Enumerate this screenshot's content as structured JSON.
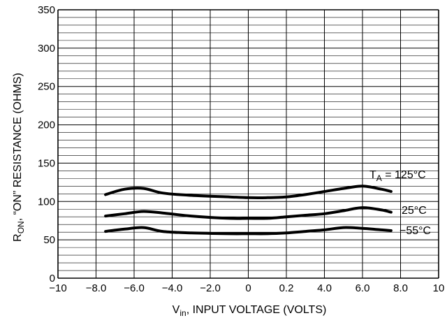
{
  "chart_data": {
    "type": "line",
    "ylabel": {
      "main": "R",
      "sub": "ON",
      "rest": ", “ON” RESISTANCE (OHMS)"
    },
    "xlabel": {
      "main": "V",
      "sub": "in",
      "rest": ", INPUT VOLTAGE (VOLTS)"
    },
    "xlim": [
      -10,
      10
    ],
    "ylim": [
      0,
      350
    ],
    "grid": true,
    "x_tick_labels": [
      "−10",
      "−8.0",
      "−6.0",
      "−4.0",
      "−2.0",
      "0",
      "0.2",
      "4.0",
      "6.0",
      "8.0",
      "10"
    ],
    "y_tick_labels": [
      "0",
      "50",
      "100",
      "150",
      "200",
      "250",
      "300",
      "350"
    ],
    "series": [
      {
        "label_prefix": "T",
        "label_sub": "A",
        "label_rest": " = 125°C",
        "points": [
          [
            -7.5,
            109
          ],
          [
            -6.5,
            116
          ],
          [
            -5.5,
            117
          ],
          [
            -4.5,
            111
          ],
          [
            -3,
            108
          ],
          [
            -1,
            106
          ],
          [
            0,
            105
          ],
          [
            1,
            105
          ],
          [
            2,
            106
          ],
          [
            3,
            109
          ],
          [
            4,
            113
          ],
          [
            5,
            117
          ],
          [
            6,
            120
          ],
          [
            7,
            116
          ],
          [
            7.5,
            113
          ]
        ]
      },
      {
        "label": "25°C",
        "points": [
          [
            -7.5,
            81
          ],
          [
            -6.5,
            84
          ],
          [
            -5.5,
            87
          ],
          [
            -4.5,
            85
          ],
          [
            -3,
            81
          ],
          [
            -1,
            78
          ],
          [
            0,
            78
          ],
          [
            1,
            78
          ],
          [
            2,
            80
          ],
          [
            3,
            82
          ],
          [
            4,
            84
          ],
          [
            5,
            88
          ],
          [
            6,
            92
          ],
          [
            7,
            89
          ],
          [
            7.5,
            86
          ]
        ]
      },
      {
        "label": "−55°C",
        "points": [
          [
            -7.5,
            61
          ],
          [
            -6.5,
            64
          ],
          [
            -5.5,
            66
          ],
          [
            -4.5,
            61
          ],
          [
            -3,
            59
          ],
          [
            -1,
            58
          ],
          [
            0,
            58
          ],
          [
            1,
            58
          ],
          [
            2,
            59
          ],
          [
            3,
            61
          ],
          [
            4,
            63
          ],
          [
            5,
            66
          ],
          [
            6,
            65
          ],
          [
            7,
            63
          ],
          [
            7.5,
            62
          ]
        ]
      }
    ]
  }
}
